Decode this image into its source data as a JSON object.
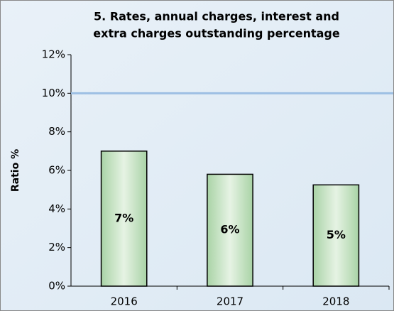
{
  "chart_data": {
    "type": "bar",
    "title": [
      "5. Rates, annual charges, interest and",
      "extra charges outstanding percentage"
    ],
    "y_label": "Ratio %",
    "categories": [
      "2016",
      "2017",
      "2018"
    ],
    "values": [
      7,
      5.8,
      5.25
    ],
    "value_labels": [
      "7%",
      "6%",
      "5%"
    ],
    "color": "#c6e2c4",
    "reference_line": {
      "value": 10,
      "color": "#9dbfe3"
    },
    "ylim": [
      0,
      12
    ],
    "yticks": [
      {
        "value": 0,
        "label": "0%"
      },
      {
        "value": 2,
        "label": "2%"
      },
      {
        "value": 4,
        "label": "4%"
      },
      {
        "value": 6,
        "label": "6%"
      },
      {
        "value": 8,
        "label": "8%"
      },
      {
        "value": 10,
        "label": "10%"
      },
      {
        "value": 12,
        "label": "12%"
      }
    ],
    "grid": false
  }
}
